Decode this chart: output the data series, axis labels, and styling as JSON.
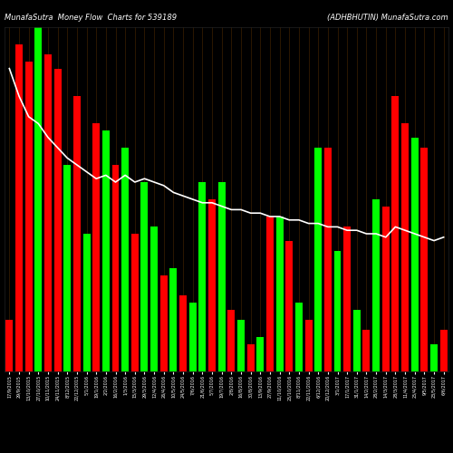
{
  "title_left": "MunafaSutra  Money Flow  Charts for 539189",
  "title_right": "(ADHBHUTIN) MunafaSutra.com",
  "bg_color": "#000000",
  "bar_color_up": "#00ff00",
  "bar_color_dn": "#ff0000",
  "line_color": "#ffffff",
  "grid_color": "#3d2000",
  "bars": [
    [
      "r",
      15
    ],
    [
      "r",
      95
    ],
    [
      "r",
      90
    ],
    [
      "g",
      100
    ],
    [
      "r",
      92
    ],
    [
      "r",
      88
    ],
    [
      "g",
      60
    ],
    [
      "r",
      80
    ],
    [
      "g",
      40
    ],
    [
      "r",
      72
    ],
    [
      "g",
      70
    ],
    [
      "r",
      60
    ],
    [
      "g",
      65
    ],
    [
      "r",
      40
    ],
    [
      "g",
      55
    ],
    [
      "g",
      42
    ],
    [
      "r",
      28
    ],
    [
      "g",
      30
    ],
    [
      "r",
      22
    ],
    [
      "g",
      20
    ],
    [
      "g",
      55
    ],
    [
      "r",
      50
    ],
    [
      "g",
      55
    ],
    [
      "r",
      18
    ],
    [
      "g",
      15
    ],
    [
      "r",
      8
    ],
    [
      "g",
      10
    ],
    [
      "r",
      45
    ],
    [
      "g",
      45
    ],
    [
      "r",
      38
    ],
    [
      "g",
      20
    ],
    [
      "r",
      15
    ],
    [
      "g",
      65
    ],
    [
      "r",
      65
    ],
    [
      "g",
      35
    ],
    [
      "r",
      42
    ],
    [
      "g",
      18
    ],
    [
      "r",
      12
    ],
    [
      "g",
      50
    ],
    [
      "r",
      48
    ],
    [
      "r",
      80
    ],
    [
      "r",
      72
    ],
    [
      "g",
      68
    ],
    [
      "r",
      65
    ],
    [
      "g",
      8
    ],
    [
      "r",
      12
    ]
  ],
  "line_values": [
    88,
    80,
    74,
    72,
    68,
    65,
    62,
    60,
    58,
    56,
    57,
    55,
    57,
    55,
    56,
    55,
    54,
    52,
    51,
    50,
    49,
    49,
    48,
    47,
    47,
    46,
    46,
    45,
    45,
    44,
    44,
    43,
    43,
    42,
    42,
    41,
    41,
    40,
    40,
    39,
    42,
    41,
    40,
    39,
    38,
    39
  ],
  "x_labels": [
    "17/9/2015",
    "29/9/2015",
    "13/10/2015",
    "27/10/2015",
    "10/11/2015",
    "24/11/2015",
    "8/12/2015",
    "22/12/2015",
    "5/1/2016",
    "19/1/2016",
    "2/2/2016",
    "16/2/2016",
    "1/3/2016",
    "15/3/2016",
    "29/3/2016",
    "12/4/2016",
    "26/4/2016",
    "10/5/2016",
    "24/5/2016",
    "7/6/2016",
    "21/6/2016",
    "5/7/2016",
    "19/7/2016",
    "2/8/2016",
    "16/8/2016",
    "30/8/2016",
    "13/9/2016",
    "27/9/2016",
    "11/10/2016",
    "25/10/2016",
    "8/11/2016",
    "22/11/2016",
    "6/12/2016",
    "20/12/2016",
    "3/1/2017",
    "17/1/2017",
    "31/1/2017",
    "14/2/2017",
    "28/2/2017",
    "14/3/2017",
    "28/3/2017",
    "11/4/2017",
    "25/4/2017",
    "9/5/2017",
    "23/5/2017",
    "6/6/2017"
  ],
  "ylim": [
    0,
    100
  ],
  "figsize": [
    5.0,
    5.0
  ],
  "dpi": 100
}
